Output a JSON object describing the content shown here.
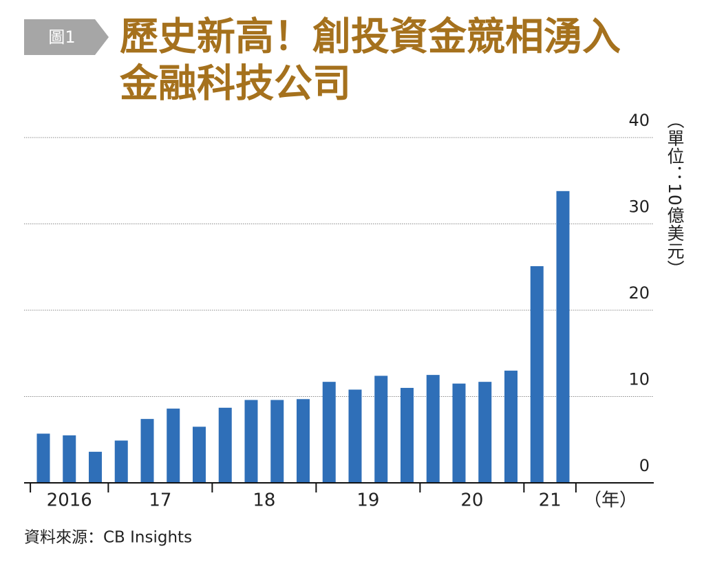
{
  "chart_data": {
    "type": "bar",
    "badge": "圖1",
    "title": "歷史新高！創投資金競相湧入",
    "subtitle": "金融科技公司",
    "y_label": "（單位：10億美元）",
    "x_label": "（年）",
    "source": "資料來源：CB Insights",
    "categories": [
      "2016",
      null,
      null,
      "17",
      null,
      null,
      null,
      "18",
      null,
      null,
      null,
      "19",
      null,
      null,
      null,
      "20",
      null,
      null,
      null,
      "21",
      null
    ],
    "values": [
      5.7,
      5.5,
      3.6,
      4.9,
      7.4,
      8.6,
      6.5,
      8.7,
      9.6,
      9.6,
      9.7,
      11.7,
      10.8,
      12.4,
      11.0,
      12.5,
      11.5,
      11.7,
      13.0,
      25.1,
      33.8
    ],
    "color": "#2f6fb8",
    "ylim": [
      0,
      40
    ],
    "yticks": [
      0,
      10,
      20,
      30,
      40
    ],
    "grid": true
  }
}
